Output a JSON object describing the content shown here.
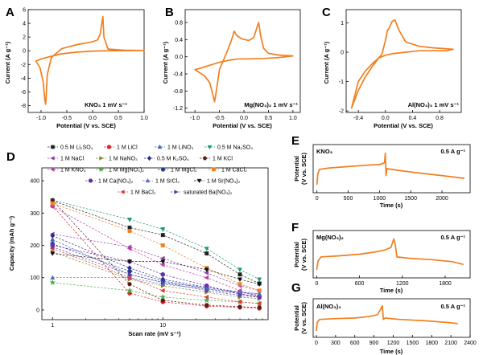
{
  "figure": {
    "colors": {
      "curve": "#f07f1f",
      "axis": "#000000"
    }
  },
  "chart_data": [
    {
      "id": "A",
      "type": "line",
      "panel_label": "A",
      "xlabel": "Potential (V vs. SCE)",
      "ylabel": "Current (A g⁻¹)",
      "annotation": "KNO₃ 1 mV s⁻¹",
      "xlim": [
        -1.25,
        1.0
      ],
      "ylim": [
        -9,
        6
      ],
      "xticks": [
        "-1.0",
        "-0.5",
        "0.0",
        "0.5",
        "1.0"
      ],
      "xtick_values": [
        -1.0,
        -0.5,
        0.0,
        0.5,
        1.0
      ],
      "yticks": [
        "-8",
        "-6",
        "-4",
        "-2",
        "0",
        "2",
        "4",
        "6"
      ],
      "ytick_values": [
        -8,
        -6,
        -4,
        -2,
        0,
        2,
        4,
        6
      ],
      "series": [
        {
          "name": "CV",
          "x": [
            -1.1,
            -1.02,
            -0.96,
            -0.93,
            -0.91,
            -0.9,
            -0.88,
            -0.8,
            -0.6,
            -0.3,
            0.0,
            0.1,
            0.15,
            0.18,
            0.2,
            0.22,
            0.3,
            0.6,
            1.0,
            0.6,
            0.3,
            0.0,
            -0.3,
            -0.6,
            -0.8,
            -0.9,
            -1.0,
            -1.1
          ],
          "y": [
            -1.5,
            -2.5,
            -4.5,
            -7.0,
            -7.8,
            -6.5,
            -3.5,
            -1.0,
            0.3,
            0.9,
            1.3,
            1.6,
            2.5,
            4.0,
            5.0,
            2.0,
            0.25,
            0.08,
            0.05,
            0.0,
            0.0,
            -0.05,
            -0.2,
            -0.45,
            -0.8,
            -1.0,
            -1.2,
            -1.5
          ]
        }
      ]
    },
    {
      "id": "B",
      "type": "line",
      "panel_label": "B",
      "xlabel": "Potential (V vs. SCE)",
      "ylabel": "Current (A g⁻¹)",
      "annotation": "Mg(NO₃)₂ 1 mV s⁻¹",
      "xlim": [
        -1.2,
        1.15
      ],
      "ylim": [
        -1.3,
        1.1
      ],
      "xticks": [
        "-1.0",
        "-0.5",
        "0.0",
        "0.5",
        "1.0"
      ],
      "xtick_values": [
        -1.0,
        -0.5,
        0.0,
        0.5,
        1.0
      ],
      "yticks": [
        "-1.2",
        "-0.8",
        "-0.4",
        "0.0",
        "0.4",
        "0.8"
      ],
      "ytick_values": [
        -1.2,
        -0.8,
        -0.4,
        0.0,
        0.4,
        0.8
      ],
      "series": [
        {
          "name": "CV",
          "x": [
            -1.0,
            -0.8,
            -0.7,
            -0.63,
            -0.6,
            -0.57,
            -0.5,
            -0.35,
            -0.25,
            -0.2,
            -0.15,
            -0.05,
            0.1,
            0.2,
            0.27,
            0.3,
            0.34,
            0.4,
            0.5,
            0.7,
            1.0,
            0.7,
            0.4,
            0.1,
            -0.1,
            -0.3,
            -0.5,
            -0.7,
            -0.9,
            -1.0
          ],
          "y": [
            -0.3,
            -0.45,
            -0.6,
            -0.9,
            -1.05,
            -0.85,
            -0.3,
            0.1,
            0.4,
            0.6,
            0.5,
            0.42,
            0.38,
            0.45,
            0.7,
            0.8,
            0.5,
            0.2,
            0.08,
            0.04,
            0.02,
            -0.02,
            -0.04,
            -0.05,
            -0.05,
            -0.08,
            -0.13,
            -0.2,
            -0.27,
            -0.3
          ]
        }
      ]
    },
    {
      "id": "C",
      "type": "line",
      "panel_label": "C",
      "xlabel": "Potential (V vs. SCE)",
      "ylabel": "Current (A g⁻¹)",
      "annotation": "Al(NO₃)₃ 1 mV s⁻¹",
      "xlim": [
        -0.58,
        1.12
      ],
      "ylim": [
        -2.05,
        1.45
      ],
      "xticks": [
        "-0.4",
        "0.0",
        "0.4",
        "0.8"
      ],
      "xtick_values": [
        -0.4,
        0.0,
        0.4,
        0.8
      ],
      "yticks": [
        "-2",
        "-1",
        "0",
        "1"
      ],
      "ytick_values": [
        -2,
        -1,
        0,
        1
      ],
      "series": [
        {
          "name": "CV",
          "x": [
            -0.5,
            -0.4,
            -0.3,
            -0.2,
            -0.1,
            -0.05,
            0.0,
            0.03,
            0.05,
            0.08,
            0.1,
            0.14,
            0.2,
            0.3,
            0.5,
            0.7,
            1.0,
            0.9,
            0.7,
            0.5,
            0.3,
            0.1,
            0.0,
            -0.1,
            -0.2,
            -0.3,
            -0.4,
            -0.5
          ],
          "y": [
            -1.9,
            -1.3,
            -0.85,
            -0.5,
            -0.2,
            -0.05,
            0.4,
            0.75,
            0.8,
            0.95,
            1.05,
            1.1,
            0.75,
            0.35,
            0.2,
            0.15,
            0.1,
            0.05,
            0.05,
            0.05,
            0.0,
            -0.05,
            -0.1,
            -0.2,
            -0.4,
            -0.65,
            -1.0,
            -1.9
          ]
        }
      ]
    },
    {
      "id": "D",
      "type": "scatter",
      "panel_label": "D",
      "xscale": "log",
      "xlabel": "Scan rate (mV s⁻¹)",
      "ylabel": "Capacity (mAh g⁻¹)",
      "xlim": [
        0.8,
        90
      ],
      "ylim": [
        -30,
        440
      ],
      "xticks": [
        "1",
        "10",
        "100"
      ],
      "xtick_values": [
        1,
        10,
        100
      ],
      "yticks": [
        "0",
        "100",
        "200",
        "300",
        "400"
      ],
      "ytick_values": [
        0,
        100,
        200,
        300,
        400
      ],
      "x": [
        1,
        5,
        10,
        25,
        50,
        75
      ],
      "series": [
        {
          "name": "0.5 M Li₂SO₄",
          "color": "#222222",
          "marker": "square",
          "values": [
            338,
            255,
            232,
            175,
            110,
            82
          ]
        },
        {
          "name": "1 M LiCl",
          "color": "#e5202a",
          "marker": "circle",
          "values": [
            322,
            52,
            25,
            12,
            8,
            5
          ]
        },
        {
          "name": "1 M LiNO₃",
          "color": "#3f62ae",
          "marker": "triangle-up",
          "values": [
            218,
            110,
            85,
            70,
            55,
            50
          ]
        },
        {
          "name": "0.5 M Na₂SO₄",
          "color": "#1a9d6b",
          "marker": "triangle-down",
          "values": [
            340,
            280,
            250,
            190,
            125,
            95
          ]
        },
        {
          "name": "1 M NaCl",
          "color": "#8e44ad",
          "marker": "triangle-left",
          "values": [
            235,
            195,
            160,
            115,
            75,
            60
          ]
        },
        {
          "name": "1 M NaNO₃",
          "color": "#7a8a2a",
          "marker": "triangle-right",
          "values": [
            180,
            95,
            75,
            55,
            40,
            35
          ]
        },
        {
          "name": "0.5 M K₂SO₄",
          "color": "#2e2a8f",
          "marker": "diamond",
          "values": [
            230,
            130,
            95,
            70,
            55,
            45
          ]
        },
        {
          "name": "1 M KCl",
          "color": "#5b1a1a",
          "marker": "hexagon",
          "values": [
            340,
            80,
            30,
            15,
            10,
            8
          ]
        },
        {
          "name": "1 M KNO₃",
          "color": "#c23aa8",
          "marker": "triangle-left",
          "values": [
            320,
            190,
            140,
            100,
            60,
            40
          ]
        },
        {
          "name": "1 M Mg(NO₃)₂",
          "color": "#4caf50",
          "marker": "star",
          "values": [
            85,
            60,
            40,
            30,
            25,
            20
          ]
        },
        {
          "name": "1 M MgCl₂",
          "color": "#1f3f8f",
          "marker": "pentagon",
          "values": [
            205,
            120,
            90,
            65,
            50,
            40
          ]
        },
        {
          "name": "1 M CaCl₂",
          "color": "#f07f1f",
          "marker": "square",
          "values": [
            330,
            245,
            200,
            130,
            80,
            60
          ]
        },
        {
          "name": "1 M Ca(NO₃)₂",
          "color": "#6a2dab",
          "marker": "circle",
          "values": [
            200,
            150,
            110,
            75,
            50,
            40
          ]
        },
        {
          "name": "1 M SrCl₂",
          "color": "#5c6bc0",
          "marker": "triangle-up",
          "values": [
            100,
            100,
            80,
            65,
            55,
            50
          ]
        },
        {
          "name": "1 M Sr(NO₃)₂",
          "color": "#111111",
          "marker": "triangle-down",
          "values": [
            175,
            150,
            150,
            125,
            95,
            80
          ]
        },
        {
          "name": "1 M BaCl₂",
          "color": "#e53935",
          "marker": "triangle-left",
          "values": [
            190,
            100,
            60,
            40,
            25,
            20
          ]
        },
        {
          "name": "saturated Ba(NO₃)₂",
          "color": "#5b3fae",
          "marker": "triangle-right",
          "values": [
            195,
            110,
            85,
            60,
            45,
            40
          ]
        }
      ]
    },
    {
      "id": "E",
      "type": "line",
      "panel_label": "E",
      "xlabel": "Time (s)",
      "ylabel": "Potential (V vs. SCE)",
      "annotation": "KNO₃",
      "rate": "0.5 A g⁻¹",
      "xlim": [
        -60,
        2450
      ],
      "ylim": [
        -0.2,
        1.2
      ],
      "xticks": [
        "0",
        "500",
        "1000",
        "1500",
        "2000",
        "2500"
      ],
      "xtick_values": [
        0,
        500,
        1000,
        1500,
        2000,
        2500
      ],
      "yticks": [],
      "ytick_values": [],
      "series": [
        {
          "name": "GCD",
          "x": [
            0,
            15,
            40,
            200,
            500,
            800,
            1000,
            1080,
            1095,
            1105,
            1120,
            1300,
            1600,
            2000,
            2350
          ],
          "y": [
            0.05,
            0.35,
            0.48,
            0.52,
            0.56,
            0.6,
            0.62,
            0.67,
            0.95,
            0.3,
            0.5,
            0.45,
            0.38,
            0.3,
            0.22
          ]
        }
      ]
    },
    {
      "id": "F",
      "type": "line",
      "panel_label": "F",
      "xlabel": "Time (s)",
      "ylabel": "Potential (V vs. SCE)",
      "annotation": "Mg(NO₃)₂",
      "rate": "0.5 A g⁻¹",
      "xlim": [
        -50,
        2150
      ],
      "ylim": [
        -0.2,
        1.2
      ],
      "xticks": [
        "0",
        "600",
        "1200",
        "1800"
      ],
      "xtick_values": [
        0,
        600,
        1200,
        1800
      ],
      "yticks": [],
      "ytick_values": [],
      "series": [
        {
          "name": "GCD",
          "x": [
            0,
            20,
            60,
            300,
            600,
            800,
            950,
            1040,
            1080,
            1100,
            1125,
            1300,
            1600,
            1900,
            2050
          ],
          "y": [
            0.05,
            0.3,
            0.42,
            0.45,
            0.5,
            0.56,
            0.62,
            0.7,
            0.95,
            0.8,
            0.42,
            0.38,
            0.34,
            0.28,
            0.2
          ]
        }
      ]
    },
    {
      "id": "G",
      "type": "line",
      "panel_label": "G",
      "xlabel": "Time (s)",
      "ylabel": "Potential (V vs. SCE)",
      "annotation": "Al(NO₃)₃",
      "rate": "0.5 A g⁻¹",
      "xlim": [
        -50,
        2400
      ],
      "ylim": [
        -0.2,
        1.2
      ],
      "xticks": [
        "0",
        "300",
        "600",
        "900",
        "1200",
        "1500",
        "1800",
        "2100",
        "2400"
      ],
      "xtick_values": [
        0,
        300,
        600,
        900,
        1200,
        1500,
        1800,
        2100,
        2400
      ],
      "yticks": [],
      "ytick_values": [],
      "series": [
        {
          "name": "GCD",
          "x": [
            0,
            15,
            50,
            300,
            600,
            800,
            950,
            1000,
            1030,
            1045,
            1070,
            1300,
            1700,
            2100,
            2200
          ],
          "y": [
            0.05,
            0.35,
            0.45,
            0.48,
            0.5,
            0.55,
            0.62,
            0.8,
            0.95,
            0.45,
            0.5,
            0.45,
            0.4,
            0.33,
            0.3
          ]
        }
      ]
    }
  ]
}
